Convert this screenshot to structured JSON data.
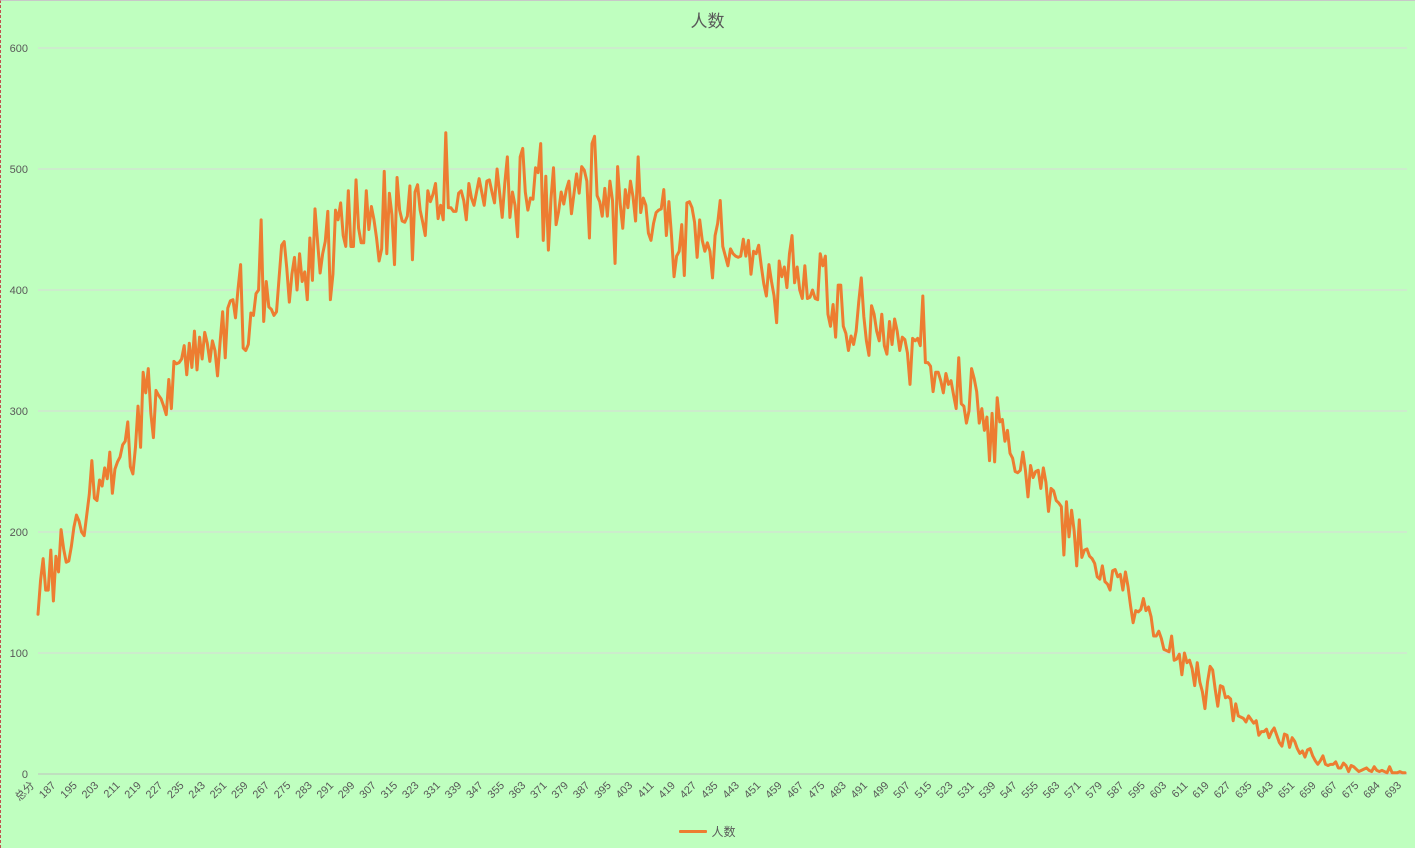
{
  "chart_data": {
    "type": "line",
    "title": "人数",
    "xlabel": "",
    "ylabel": "",
    "ylim": [
      0,
      600
    ],
    "yticks": [
      0,
      100,
      200,
      300,
      400,
      500,
      600
    ],
    "grid": true,
    "legend_position": "bottom",
    "colors": {
      "background": "#bfffbf",
      "series": "#ed7d31",
      "grid": "#d9d9d9",
      "axis_text": "#595959"
    },
    "first_category_label": "总分",
    "x_tick_labels": [
      "总分",
      "187",
      "195",
      "203",
      "211",
      "219",
      "227",
      "235",
      "243",
      "251",
      "259",
      "267",
      "275",
      "283",
      "291",
      "299",
      "307",
      "315",
      "323",
      "331",
      "339",
      "347",
      "355",
      "363",
      "371",
      "379",
      "387",
      "395",
      "403",
      "411",
      "419",
      "427",
      "435",
      "443",
      "451",
      "459",
      "467",
      "475",
      "483",
      "491",
      "499",
      "507",
      "515",
      "523",
      "531",
      "539",
      "547",
      "555",
      "563",
      "571",
      "579",
      "587",
      "595",
      "603",
      "611",
      "619",
      "627",
      "635",
      "643",
      "651",
      "659",
      "667",
      "675",
      "684",
      "693"
    ],
    "series": [
      {
        "name": "人数",
        "values": [
          132,
          160,
          178,
          152,
          152,
          185,
          143,
          180,
          167,
          202,
          186,
          175,
          176,
          188,
          204,
          214,
          209,
          200,
          197,
          214,
          231,
          259,
          228,
          226,
          243,
          238,
          253,
          244,
          266,
          232,
          252,
          258,
          262,
          272,
          275,
          291,
          254,
          248,
          270,
          304,
          270,
          332,
          315,
          335,
          298,
          278,
          317,
          313,
          310,
          304,
          297,
          326,
          302,
          341,
          339,
          340,
          343,
          354,
          330,
          356,
          336,
          366,
          334,
          361,
          343,
          365,
          356,
          341,
          358,
          350,
          329,
          357,
          382,
          344,
          385,
          391,
          392,
          377,
          401,
          421,
          352,
          350,
          355,
          381,
          379,
          397,
          400,
          458,
          374,
          407,
          386,
          384,
          379,
          382,
          410,
          437,
          440,
          418,
          390,
          413,
          427,
          400,
          430,
          407,
          415,
          392,
          443,
          408,
          467,
          440,
          414,
          430,
          440,
          465,
          392,
          413,
          466,
          458,
          472,
          445,
          436,
          482,
          436,
          436,
          491,
          451,
          439,
          439,
          482,
          450,
          469,
          458,
          443,
          424,
          434,
          498,
          430,
          480,
          462,
          421,
          493,
          466,
          457,
          456,
          461,
          486,
          425,
          481,
          487,
          466,
          456,
          445,
          482,
          473,
          479,
          488,
          459,
          470,
          458,
          530,
          468,
          468,
          465,
          465,
          480,
          482,
          474,
          458,
          488,
          476,
          470,
          481,
          492,
          481,
          470,
          490,
          491,
          481,
          472,
          500,
          480,
          460,
          488,
          510,
          460,
          481,
          470,
          444,
          510,
          517,
          481,
          466,
          476,
          475,
          501,
          497,
          521,
          441,
          494,
          433,
          475,
          501,
          454,
          465,
          481,
          471,
          483,
          490,
          463,
          480,
          496,
          480,
          502,
          499,
          490,
          443,
          521,
          527,
          478,
          473,
          461,
          484,
          461,
          490,
          474,
          422,
          502,
          471,
          451,
          483,
          468,
          490,
          477,
          457,
          510,
          464,
          476,
          470,
          447,
          441,
          455,
          464,
          466,
          467,
          483,
          445,
          473,
          445,
          411,
          428,
          432,
          454,
          412,
          472,
          473,
          468,
          456,
          427,
          458,
          441,
          432,
          439,
          432,
          410,
          445,
          455,
          474,
          436,
          428,
          420,
          434,
          430,
          428,
          427,
          428,
          442,
          428,
          441,
          413,
          432,
          430,
          437,
          420,
          405,
          395,
          421,
          407,
          395,
          373,
          424,
          411,
          419,
          402,
          430,
          445,
          406,
          419,
          400,
          393,
          420,
          393,
          394,
          400,
          393,
          392,
          430,
          420,
          428,
          380,
          370,
          388,
          361,
          404,
          404,
          370,
          364,
          350,
          362,
          355,
          366,
          390,
          410,
          378,
          358,
          346,
          387,
          380,
          366,
          358,
          380,
          354,
          347,
          374,
          355,
          376,
          366,
          350,
          361,
          359,
          348,
          322,
          360,
          358,
          360,
          354,
          395,
          340,
          340,
          337,
          316,
          332,
          332,
          325,
          315,
          331,
          322,
          325,
          313,
          302,
          344,
          306,
          304,
          290,
          300,
          335,
          327,
          316,
          290,
          302,
          284,
          295,
          259,
          298,
          258,
          311,
          291,
          293,
          275,
          284,
          265,
          261,
          250,
          249,
          251,
          266,
          251,
          229,
          255,
          245,
          250,
          251,
          236,
          253,
          241,
          217,
          236,
          234,
          226,
          224,
          221,
          181,
          225,
          196,
          218,
          201,
          172,
          210,
          179,
          185,
          186,
          180,
          178,
          174,
          163,
          161,
          172,
          159,
          157,
          152,
          168,
          169,
          163,
          165,
          152,
          167,
          155,
          139,
          125,
          135,
          134,
          136,
          145,
          135,
          138,
          130,
          114,
          114,
          118,
          112,
          103,
          102,
          101,
          114,
          94,
          95,
          99,
          82,
          100,
          92,
          94,
          87,
          73,
          92,
          76,
          68,
          54,
          76,
          89,
          86,
          70,
          56,
          73,
          72,
          63,
          64,
          62,
          44,
          58,
          48,
          47,
          46,
          43,
          48,
          45,
          42,
          44,
          32,
          35,
          35,
          37,
          30,
          35,
          38,
          32,
          26,
          23,
          33,
          32,
          22,
          30,
          27,
          21,
          17,
          19,
          14,
          20,
          21,
          15,
          11,
          8,
          11,
          15,
          8,
          7,
          8,
          8,
          10,
          5,
          5,
          9,
          7,
          2,
          7,
          6,
          4,
          2,
          3,
          4,
          5,
          3,
          2,
          6,
          3,
          2,
          3,
          2,
          1,
          6,
          1,
          1,
          1,
          2,
          1,
          1
        ]
      }
    ]
  }
}
